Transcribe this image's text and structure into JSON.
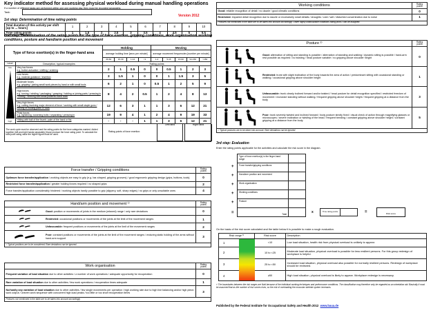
{
  "header": {
    "title": "Key indicator method for assessing physical workload during manual handling operations",
    "subtitle": "If a number of different tasks are performed within one one working day, they must be recorded separately.",
    "task_label": "Task:",
    "task_value": "",
    "version": "Version 2012"
  },
  "step1": {
    "heading": "1st step:    Determination of time rating points",
    "row1_label": "Total duration of this activity per shift [up to ... hours]",
    "hours": [
      "1",
      "2",
      "3",
      "4",
      "5",
      "6",
      "7",
      "8",
      "9",
      "10"
    ],
    "row2_label": "Time rating points",
    "points": [
      "1",
      "1.5",
      "2",
      "2.5",
      "3",
      "3.5",
      "4",
      "4.5",
      "5",
      "5.5"
    ]
  },
  "step2": {
    "heading": "2nd step:   Determination of the rating points for the type of force exertion, gripping conditions, work organisation, working conditions, posture and hand/arm position and movement"
  },
  "force": {
    "title": "Type of force exertion(s) in the finger-hand area",
    "holding": "Holding",
    "holding_sub": "average holding time [secs per minute]",
    "moving": "Moving",
    "moving_sub": "average movement frequencies [number per minute]",
    "cols": [
      "30-60",
      "15-30",
      "1-14",
      "<1",
      "1-4",
      "5-15",
      "16-90",
      "91-150",
      ">150"
    ],
    "level": "Level",
    "level_low": "low",
    "level_high": "high",
    "desc_header": "Description, typical examples",
    "rating_points": "Rating points",
    "rows": [
      {
        "name": "Very low forces",
        "ex": "e.g. button actuation / shifting / ordering",
        "v": [
          "2",
          "1",
          "0.5",
          "0",
          "0",
          "0.5",
          "1",
          "2",
          "3"
        ]
      },
      {
        "name": "Low forces",
        "ex": "e.g. material guidance / insertion",
        "v": [
          "3",
          "1.5",
          "1",
          "0",
          "0",
          "1",
          "1.5",
          "3",
          "5"
        ]
      },
      {
        "name": "Moderate forces",
        "ex": "e.g. gripping / joining small work pieces by hand or with small tools",
        "v": [
          "6",
          "2",
          "1",
          "0",
          "0.5",
          "1",
          "2",
          "5",
          "9"
        ]
      },
      {
        "name": "High forces",
        "ex": "e.g. turning / winding / packaging / grasping / holding or joining parts / pressing in / cutting / Working with small powered hand tools",
        "v": [
          "8",
          "4",
          "2",
          "0.5",
          "1",
          "2",
          "4",
          "8",
          "13"
        ]
      },
      {
        "name": "Very high forces",
        "ex": "e.g. cutting involving major element of force / working with small staple guns / moving or holding parts or tools",
        "v": [
          "12",
          "6",
          "3",
          "1",
          "1",
          "3",
          "6",
          "12",
          "21"
        ]
      },
      {
        "name": "Peak forces",
        "ex": "e.g. tightening, loosening bolts / separating / pressing in",
        "v": [
          "19",
          "9",
          "4",
          "1",
          "2",
          "4",
          "9",
          "19",
          "33"
        ]
      },
      {
        "name": "",
        "ex": "Hitting with ball of the thumb, palm of the hand or fist",
        "v": [
          "-",
          "-",
          "-",
          "1",
          "1",
          "3",
          "6",
          "12",
          "21"
        ]
      }
    ],
    "note": "The work cycle must be observed and the rating points for the force categories marked. Added together (left and right hands separately) those produce the force rating point. To calculate the total point rating value the higher figure must be used.",
    "result_label": "Rating points of force exertion:",
    "left_hand": "Left hand",
    "right_hand": "Right hand"
  },
  "transfer": {
    "title": "Force transfer / Gripping conditions",
    "rp": "Rating points",
    "rows": [
      {
        "bold": "Optimum force transfer/application",
        "text": " / working objects are easy to grip (e.g. bar-shaped, gripping grooves) / good ergonomic gripping design (grips, buttons, tools)",
        "p": "0"
      },
      {
        "bold": "Restricted force transfer/application",
        "text": " / greater holding forces required / no shaped grips",
        "p": "2"
      },
      {
        "bold": "",
        "text": "Force transfer/application considerably hindered / working objects hardly possible to grip (slippery, soft, sharp edges) / no grips or only unsuitable ones",
        "p": "4"
      }
    ]
  },
  "handarm": {
    "title": "Hand/arm position and movement ¹⁾",
    "rp": "Rating points",
    "rows": [
      {
        "bold": "Good:",
        "text": " position or movements of joints in the medium (relaxed) range / only rare deviations",
        "p": "0"
      },
      {
        "bold": "Restricted:",
        "text": " occasional positions or movements of the joints at the limit of the movement ranges",
        "p": "1"
      },
      {
        "bold": "Unfavourable:",
        "text": " frequent positions or movements of the joints at the limit of the movement ranges",
        "p": "2"
      },
      {
        "bold": "Poor:",
        "text": " constant positions or movements of the joints at the limit of the movement ranges / enduring static holding of the arms without hand-arm support",
        "p": "3"
      }
    ],
    "footnote": "¹⁾ Typical positions are to be considered. Rare deviations can be ignored."
  },
  "workorg": {
    "title": "Work organisation",
    "rp": "Rating points",
    "rows": [
      {
        "bold": "Frequent variation of load situation",
        "text": " due to other activities / ≥ number of work operations / adequate opportunity for recuperation",
        "p": "0"
      },
      {
        "bold": "Rare variation of load situation",
        "text": " due to other activities / few work operations / recuperation times adequate",
        "p": "1"
      },
      {
        "bold": "No/hardly any variation of load situation",
        "text": " due to other activities / few single movements per operation / high working rate due to high line balancing and/or high piece-work output / uneven work sequence with concurrent high load peaks / too little or too short recuperation times",
        "p": "3"
      }
    ],
    "footnote": "Features not mentioned in the table are to be taken into account accordingly."
  },
  "workcond": {
    "title": "Working conditions",
    "rp": "Rating points",
    "rows": [
      {
        "bold": "Good:",
        "text": " reliable recognition of detail / no dazzle / good climatic conditions",
        "p": "0"
      },
      {
        "bold": "Restricted:",
        "text": " impaired detail recognition due to dazzle or excessively small details / draughts / cold / wet / disturbed concentration due to noise",
        "p": "1"
      }
    ],
    "footnote": "Features not mentioned in the table are to be taken into account accordingly. Under highly unfavourable conditions rating point 2 can be assigned."
  },
  "posture": {
    "title": "Posture ²⁾",
    "rp": "Rating points",
    "rows": [
      {
        "bold": "Good:",
        "text": " alternation of sitting and standing is possible / alternation of standing and walking / dynamic sitting is possible / hand-arm rest possible as required / no twisting / head posture variable / no gripping above shoulder height",
        "p": "0"
      },
      {
        "bold": "Restricted:",
        "text": " trunk with slight inclination of the body towards the area of action / predominant sitting with occasional standing or walking / occasional gripping above shoulder height",
        "p": "1"
      },
      {
        "bold": "Unfavourable:",
        "text": " trunk clearly inclined forward and/or twisted / head posture for detail recognition specified / restricted freedom of movement / exclusive standing without walking / frequent gripping above shoulder height / frequent gripping at a distance from the body",
        "p": "3"
      },
      {
        "bold": "Poor:",
        "text": " trunk severely twisted and inclined forward / body posture strictly fixed / visual check of action through magnifying glasses or microscopes / severe inclination or twisting of the head / frequent bending / constant gripping above shoulder height / constant gripping at a distance from the body",
        "p": "5"
      }
    ],
    "footnote": "²⁾ Typical postures are to be taken into account. Rare deviations can be ignored."
  },
  "step3": {
    "heading": "3rd step:    Evaluation",
    "intro": "Enter the rating points applicable for the activities and calculate the risk score in the diagram.",
    "items": [
      "Type of force exertion(s) in the finger-hand range",
      "Force transfer/gripping conditions",
      "Hand/arm position and movement",
      "Work organisation",
      "Working conditions",
      "Posture"
    ],
    "ops": [
      "",
      "+",
      "+",
      "+",
      "+",
      "+"
    ],
    "equals": "=",
    "total": "Total",
    "times": "x",
    "time_points": "Time rating points",
    "risk_score": "Risk score",
    "after": "On the basis of the risk score calculated and the table below it is possible to make a rough evaluation."
  },
  "risk": {
    "headers": [
      "Risk range ³⁾",
      "Risk score",
      "Description"
    ],
    "rows": [
      {
        "range": "1",
        "score": "<10",
        "desc": "Low load situation, health risk from physical overload is unlikely to appear."
      },
      {
        "range": "2",
        "score": "10 to <25",
        "desc": "Moderate load situation, physical overload is possible for less resilient persons. For this group redesign of workplace is helpful."
      },
      {
        "range": "3",
        "score": "25 to <50",
        "desc": "Increased load situation, physical overload also possible for normally resilient persons. Redesign of workplace should be reviewed."
      },
      {
        "range": "4",
        "score": "≥50",
        "desc": "High load situation, physical overload is likely to appear. Workplace redesign is necessary."
      }
    ],
    "colors": [
      "#2db83d",
      "#c9e020",
      "#f5e600",
      "#f03a10"
    ],
    "footnote": "³⁾ The boundaries between the risk ranges are fluid because of the individual working techniques and performance conditions. The classification may therefore only be regarded as an orientation aid. Basically it must be assumed that as the number of risk scores rises, so the risk of overloading the muscular skeletal system increases."
  },
  "footer": {
    "published": "Published by the Federal Institute for Occupational Safety and Health 2012",
    "link": "www.baua.de"
  }
}
